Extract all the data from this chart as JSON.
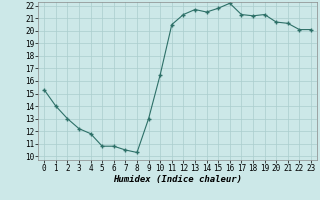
{
  "x": [
    0,
    1,
    2,
    3,
    4,
    5,
    6,
    7,
    8,
    9,
    10,
    11,
    12,
    13,
    14,
    15,
    16,
    17,
    18,
    19,
    20,
    21,
    22,
    23
  ],
  "y": [
    15.3,
    14.0,
    13.0,
    12.2,
    11.8,
    10.8,
    10.8,
    10.5,
    10.3,
    13.0,
    16.5,
    20.5,
    21.3,
    21.7,
    21.5,
    21.8,
    22.2,
    21.3,
    21.2,
    21.3,
    20.7,
    20.6,
    20.1,
    20.1
  ],
  "xlabel": "Humidex (Indice chaleur)",
  "ylim": [
    10,
    22
  ],
  "xlim": [
    -0.5,
    23.5
  ],
  "yticks": [
    10,
    11,
    12,
    13,
    14,
    15,
    16,
    17,
    18,
    19,
    20,
    21,
    22
  ],
  "xticks": [
    0,
    1,
    2,
    3,
    4,
    5,
    6,
    7,
    8,
    9,
    10,
    11,
    12,
    13,
    14,
    15,
    16,
    17,
    18,
    19,
    20,
    21,
    22,
    23
  ],
  "line_color": "#2d7068",
  "marker_color": "#2d7068",
  "bg_color": "#cce8e8",
  "grid_color": "#aacece",
  "tick_fontsize": 5.5,
  "xlabel_fontsize": 6.5
}
